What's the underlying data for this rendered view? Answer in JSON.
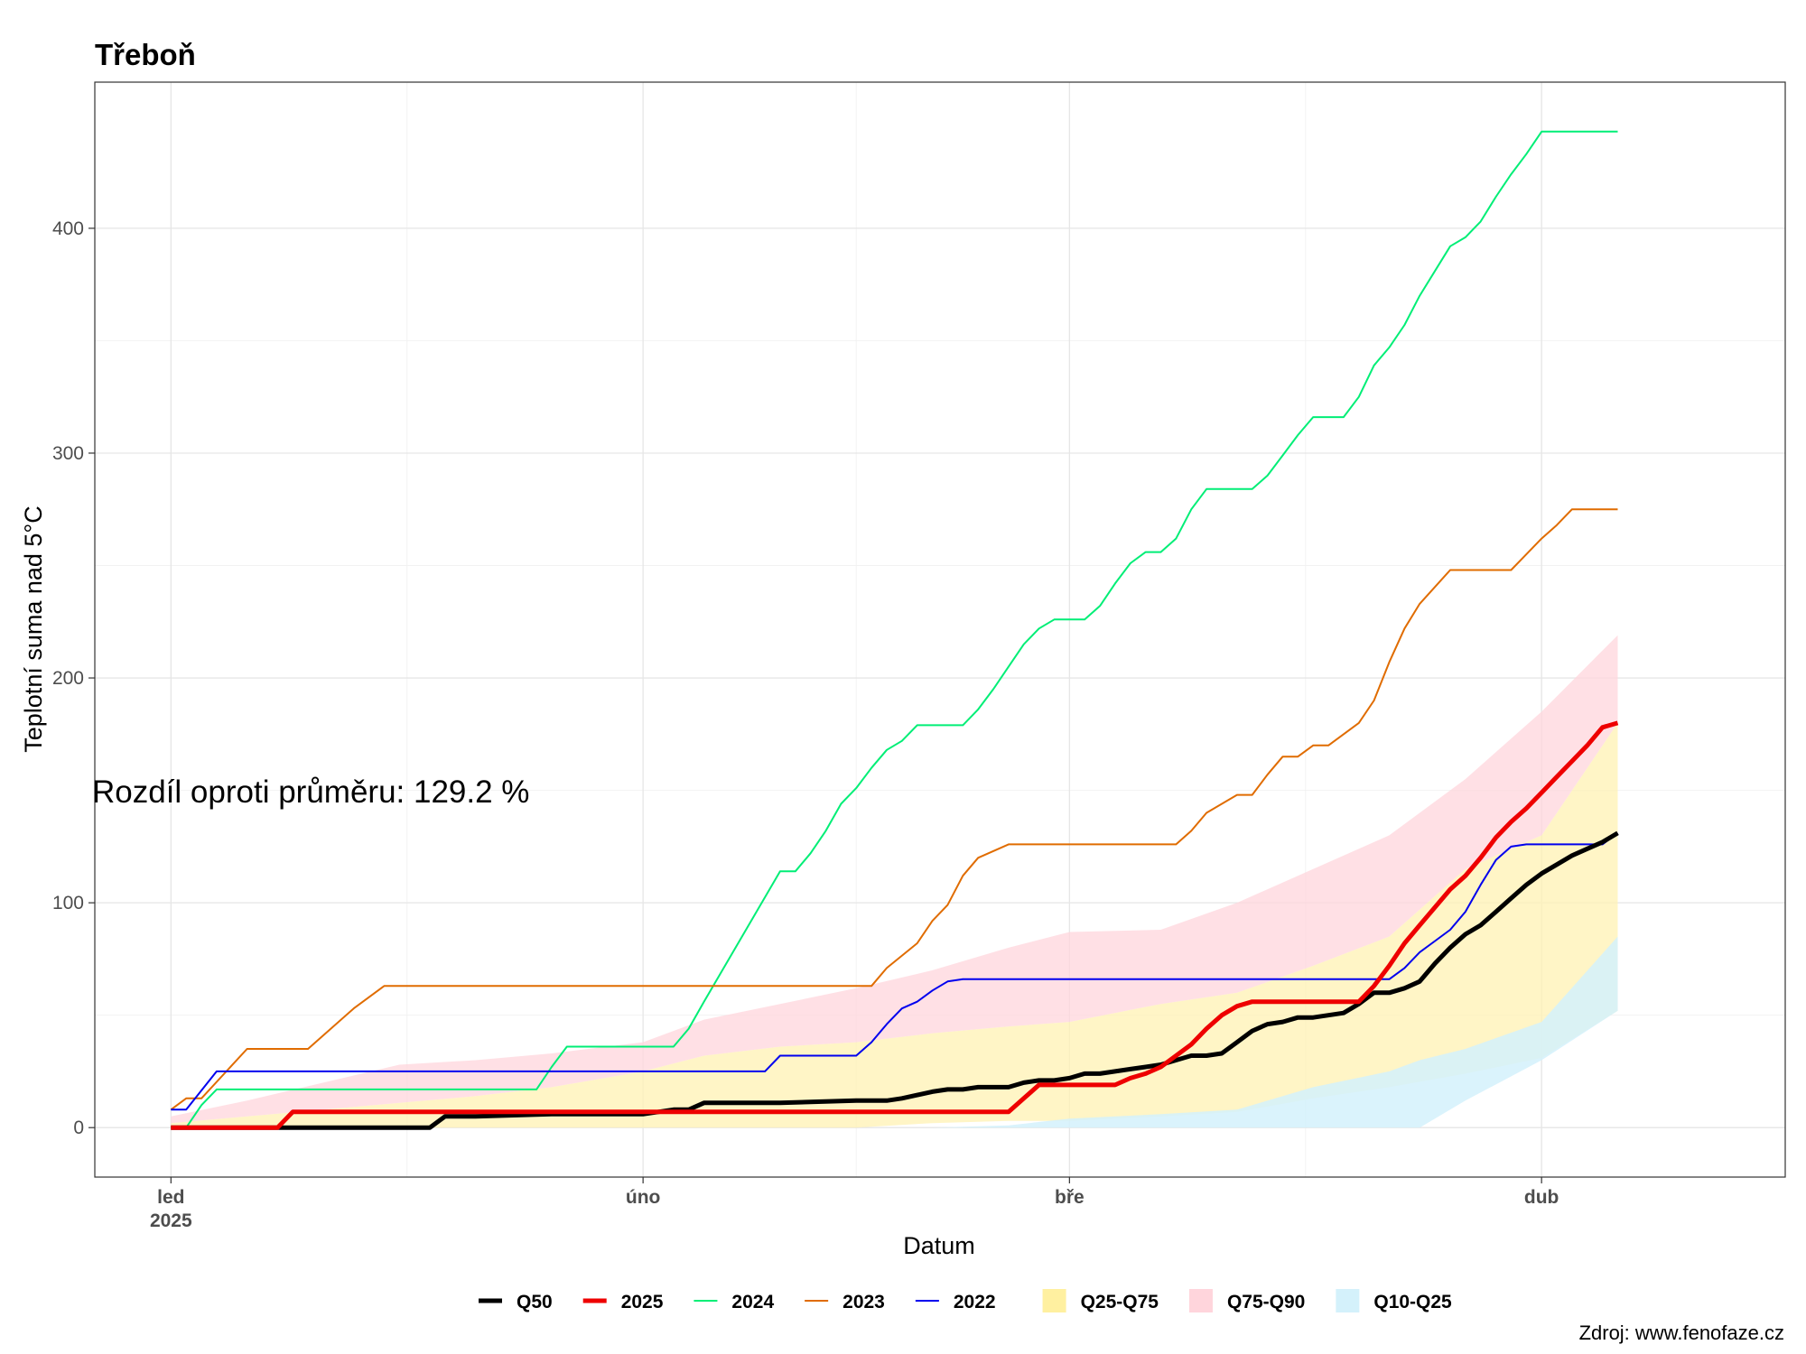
{
  "chart_data": {
    "type": "line",
    "title": "Třeboň",
    "xlabel": "Datum",
    "ylabel": "Teplotní suma nad 5°C",
    "annotation": "Rozdíl oproti průměru: 129.2 %",
    "caption": "Zdroj: www.fenofaze.cz",
    "x_range_days": [
      -5,
      106
    ],
    "ylim": [
      -22,
      465
    ],
    "grid": true,
    "legend_position": "bottom",
    "x_ticks": [
      {
        "day": 0,
        "label": "led",
        "sublabel": "2025"
      },
      {
        "day": 31,
        "label": "úno",
        "sublabel": ""
      },
      {
        "day": 59,
        "label": "bře",
        "sublabel": ""
      },
      {
        "day": 90,
        "label": "dub",
        "sublabel": ""
      }
    ],
    "y_ticks": [
      0,
      100,
      200,
      300,
      400
    ],
    "bands": [
      {
        "name": "Q25-Q75",
        "color": "#fff2b3",
        "opacity": 0.75,
        "days": [
          0,
          5,
          10,
          15,
          20,
          25,
          31,
          35,
          40,
          45,
          50,
          55,
          59,
          65,
          70,
          75,
          80,
          85,
          90,
          95
        ],
        "lower": [
          0,
          0,
          0,
          0,
          0,
          0,
          0,
          0,
          0,
          0,
          2,
          3,
          3,
          5,
          7,
          13,
          18,
          24,
          31,
          52
        ],
        "upper": [
          2,
          5,
          8,
          11,
          14,
          18,
          25,
          32,
          36,
          38,
          42,
          45,
          47,
          55,
          60,
          72,
          85,
          115,
          130,
          180
        ]
      },
      {
        "name": "Q75-Q90",
        "color": "#ffd5dc",
        "opacity": 0.75,
        "days": [
          0,
          5,
          10,
          15,
          20,
          25,
          31,
          35,
          40,
          45,
          50,
          55,
          59,
          65,
          70,
          75,
          80,
          85,
          90,
          95
        ],
        "lower": [
          2,
          5,
          8,
          11,
          14,
          18,
          25,
          32,
          36,
          38,
          42,
          45,
          47,
          55,
          60,
          72,
          85,
          115,
          130,
          180
        ],
        "upper": [
          5,
          12,
          20,
          28,
          30,
          33,
          38,
          48,
          55,
          62,
          70,
          80,
          87,
          88,
          100,
          115,
          130,
          155,
          185,
          219
        ]
      },
      {
        "name": "Q10-Q25",
        "color": "#d4f1fb",
        "opacity": 0.85,
        "days": [
          0,
          10,
          20,
          31,
          40,
          50,
          55,
          59,
          65,
          70,
          75,
          80,
          82,
          85,
          90,
          95
        ],
        "lower": [
          0,
          0,
          0,
          0,
          0,
          0,
          0,
          0,
          0,
          0,
          0,
          0,
          0,
          12,
          30,
          52
        ],
        "upper": [
          0,
          0,
          0,
          0,
          0,
          0,
          1,
          4,
          6,
          8,
          18,
          25,
          30,
          35,
          47,
          85
        ]
      }
    ],
    "series": [
      {
        "name": "2024",
        "color": "#00ee76",
        "width": 2,
        "x": [
          0,
          1,
          2,
          3,
          14,
          24,
          25,
          26,
          27,
          33,
          34,
          35,
          40,
          41,
          42,
          43,
          44,
          45,
          46,
          47,
          48,
          49,
          50,
          52,
          53,
          54,
          55,
          56,
          57,
          58,
          59,
          60,
          61,
          62,
          63,
          64,
          65,
          66,
          67,
          68,
          69,
          70,
          71,
          72,
          73,
          74,
          75,
          76,
          77,
          78,
          79,
          80,
          81,
          82,
          83,
          84,
          85,
          86,
          87,
          88,
          89,
          90,
          91,
          92,
          93,
          94,
          95
        ],
        "y": [
          0,
          0,
          10,
          17,
          17,
          17,
          27,
          36,
          36,
          36,
          44,
          56,
          114,
          114,
          122,
          132,
          144,
          151,
          160,
          168,
          172,
          179,
          179,
          179,
          186,
          195,
          205,
          215,
          222,
          226,
          226,
          226,
          232,
          242,
          251,
          256,
          256,
          262,
          275,
          284,
          284,
          284,
          284,
          290,
          299,
          308,
          316,
          316,
          316,
          325,
          339,
          347,
          357,
          370,
          381,
          392,
          396,
          403,
          414,
          424,
          433,
          443,
          443,
          443,
          443,
          443,
          443
        ]
      },
      {
        "name": "2023",
        "color": "#e06c00",
        "width": 2,
        "x": [
          0,
          1,
          2,
          5,
          9,
          12,
          14,
          31,
          46,
          47,
          49,
          50,
          51,
          52,
          53,
          55,
          60,
          66,
          67,
          68,
          70,
          71,
          72,
          73,
          74,
          75,
          76,
          78,
          79,
          80,
          81,
          82,
          84,
          85,
          86,
          87,
          88,
          89,
          90,
          91,
          92,
          95
        ],
        "y": [
          8,
          13,
          13,
          35,
          35,
          53,
          63,
          63,
          63,
          71,
          82,
          92,
          99,
          112,
          120,
          126,
          126,
          126,
          132,
          140,
          148,
          148,
          157,
          165,
          165,
          170,
          170,
          180,
          190,
          207,
          222,
          233,
          248,
          248,
          248,
          248,
          248,
          255,
          262,
          268,
          275,
          275
        ]
      },
      {
        "name": "2022",
        "color": "#0000ee",
        "width": 2,
        "x": [
          0,
          1,
          3,
          10,
          20,
          31,
          39,
          40,
          45,
          46,
          47,
          48,
          49,
          50,
          51,
          52,
          59,
          66,
          75,
          80,
          81,
          82,
          83,
          84,
          85,
          86,
          87,
          88,
          89,
          90,
          91,
          92,
          93,
          94,
          95
        ],
        "y": [
          8,
          8,
          25,
          25,
          25,
          25,
          25,
          32,
          32,
          38,
          46,
          53,
          56,
          61,
          65,
          66,
          66,
          66,
          66,
          66,
          71,
          78,
          83,
          88,
          96,
          108,
          119,
          125,
          126,
          126,
          126,
          126,
          126,
          126,
          131
        ]
      },
      {
        "name": "Q50",
        "color": "#000000",
        "width": 5,
        "x": [
          0,
          10,
          17,
          18,
          20,
          25,
          31,
          32,
          33,
          34,
          35,
          39,
          40,
          45,
          46,
          47,
          48,
          50,
          51,
          52,
          53,
          54,
          55,
          56,
          57,
          58,
          59,
          60,
          61,
          62,
          63,
          64,
          65,
          66,
          67,
          68,
          69,
          70,
          71,
          72,
          73,
          74,
          75,
          76,
          77,
          78,
          79,
          80,
          81,
          82,
          83,
          84,
          85,
          86,
          87,
          88,
          89,
          90,
          91,
          92,
          93,
          94,
          95
        ],
        "y": [
          0,
          0,
          0,
          5,
          5,
          6,
          6,
          7,
          8,
          8,
          11,
          11,
          11,
          12,
          12,
          12,
          13,
          16,
          17,
          17,
          18,
          18,
          18,
          20,
          21,
          21,
          22,
          24,
          24,
          25,
          26,
          27,
          28,
          30,
          32,
          32,
          33,
          38,
          43,
          46,
          47,
          49,
          49,
          50,
          51,
          55,
          60,
          60,
          62,
          65,
          73,
          80,
          86,
          90,
          96,
          102,
          108,
          113,
          117,
          121,
          124,
          127,
          131
        ]
      },
      {
        "name": "2025",
        "color": "#ee0000",
        "width": 5,
        "x": [
          0,
          7,
          8,
          10,
          20,
          31,
          40,
          45,
          50,
          54,
          55,
          56,
          57,
          58,
          59,
          60,
          61,
          62,
          63,
          64,
          65,
          66,
          67,
          68,
          69,
          70,
          71,
          72,
          73,
          74,
          75,
          76,
          77,
          78,
          79,
          80,
          81,
          82,
          83,
          84,
          85,
          86,
          87,
          88,
          89,
          90,
          91,
          92,
          93,
          94,
          95
        ],
        "y": [
          0,
          0,
          7,
          7,
          7,
          7,
          7,
          7,
          7,
          7,
          7,
          13,
          19,
          19,
          19,
          19,
          19,
          19,
          22,
          24,
          27,
          32,
          37,
          44,
          50,
          54,
          56,
          56,
          56,
          56,
          56,
          56,
          56,
          56,
          63,
          72,
          82,
          90,
          98,
          106,
          112,
          120,
          129,
          136,
          142,
          149,
          156,
          163,
          170,
          178,
          180
        ]
      }
    ],
    "legend": {
      "lines": [
        {
          "label": "Q50",
          "color": "#000000",
          "width": 5
        },
        {
          "label": "2025",
          "color": "#ee0000",
          "width": 5
        },
        {
          "label": "2024",
          "color": "#00ee76",
          "width": 2
        },
        {
          "label": "2023",
          "color": "#e06c00",
          "width": 2
        },
        {
          "label": "2022",
          "color": "#0000ee",
          "width": 2
        }
      ],
      "fills": [
        {
          "label": "Q25-Q75",
          "color": "#fff0a0"
        },
        {
          "label": "Q75-Q90",
          "color": "#ffd5dc"
        },
        {
          "label": "Q10-Q25",
          "color": "#d4f1fb"
        }
      ]
    }
  }
}
